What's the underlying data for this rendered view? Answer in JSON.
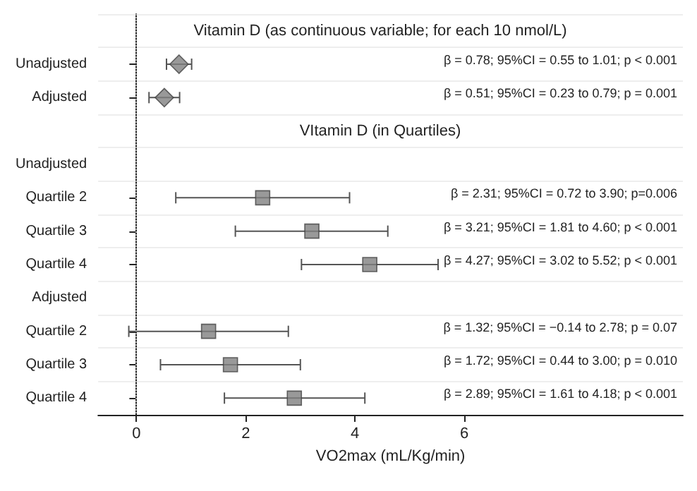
{
  "chart_data": {
    "type": "scatter",
    "orientation": "horizontal",
    "xlabel": "VO2max (mL/Kg/min)",
    "categories": [
      null,
      "Unadjusted",
      "Adjusted",
      null,
      "Unadjusted",
      "Quartile 2",
      "Quartile 3",
      "Quartile 4",
      "Adjusted",
      "Quartile 2",
      "Quartile 3",
      "Quartile 4"
    ],
    "annotations": [
      "Vitamin D (as continuous variable; for each 10 nmol/L)",
      "VItamin D (in Quartiles)",
      "β = 0.78; 95%CI = 0.55 to 1.01; p < 0.001",
      "β = 0.51; 95%CI = 0.23 to 0.79; p = 0.001",
      "β = 2.31; 95%CI = 0.72 to 3.90; p=0.006",
      "β = 3.21; 95%CI = 1.81 to 4.60; p < 0.001",
      "β = 4.27; 95%CI = 3.02 to 5.52; p < 0.001",
      "β = 1.32; 95%CI = −0.14 to 2.78; p = 0.07",
      "β = 1.72; 95%CI = 0.44 to 3.00; p = 0.010",
      "β = 2.89; 95%CI = 1.61 to 4.18; p < 0.001"
    ],
    "series": [
      {
        "color": "#808080",
        "marker": "diamond",
        "values": [
          null,
          0.78,
          0.51,
          null,
          null,
          null,
          null,
          null,
          null,
          null,
          null,
          null
        ],
        "errors": [
          null,
          [
            0.55,
            1.01
          ],
          [
            0.23,
            0.79
          ],
          null,
          null,
          null,
          null,
          null,
          null,
          null,
          null,
          null
        ]
      },
      {
        "color": "#808080",
        "marker": "square",
        "values": [
          null,
          null,
          null,
          null,
          null,
          2.31,
          3.21,
          4.27,
          null,
          1.32,
          1.72,
          2.89
        ],
        "errors": [
          null,
          null,
          null,
          null,
          null,
          [
            0.72,
            3.9
          ],
          [
            1.81,
            4.6
          ],
          [
            3.02,
            5.52
          ],
          null,
          [
            -0.14,
            2.78
          ],
          [
            0.44,
            3.0
          ],
          [
            1.61,
            4.18
          ]
        ]
      }
    ],
    "xlim": [
      -0.7,
      10
    ],
    "xticks": [
      0,
      2,
      4,
      6
    ],
    "grid": "y",
    "ref_lines": [
      {
        "axis": "x",
        "value": 0,
        "line_style": "dotted",
        "color": "#999999"
      }
    ]
  }
}
